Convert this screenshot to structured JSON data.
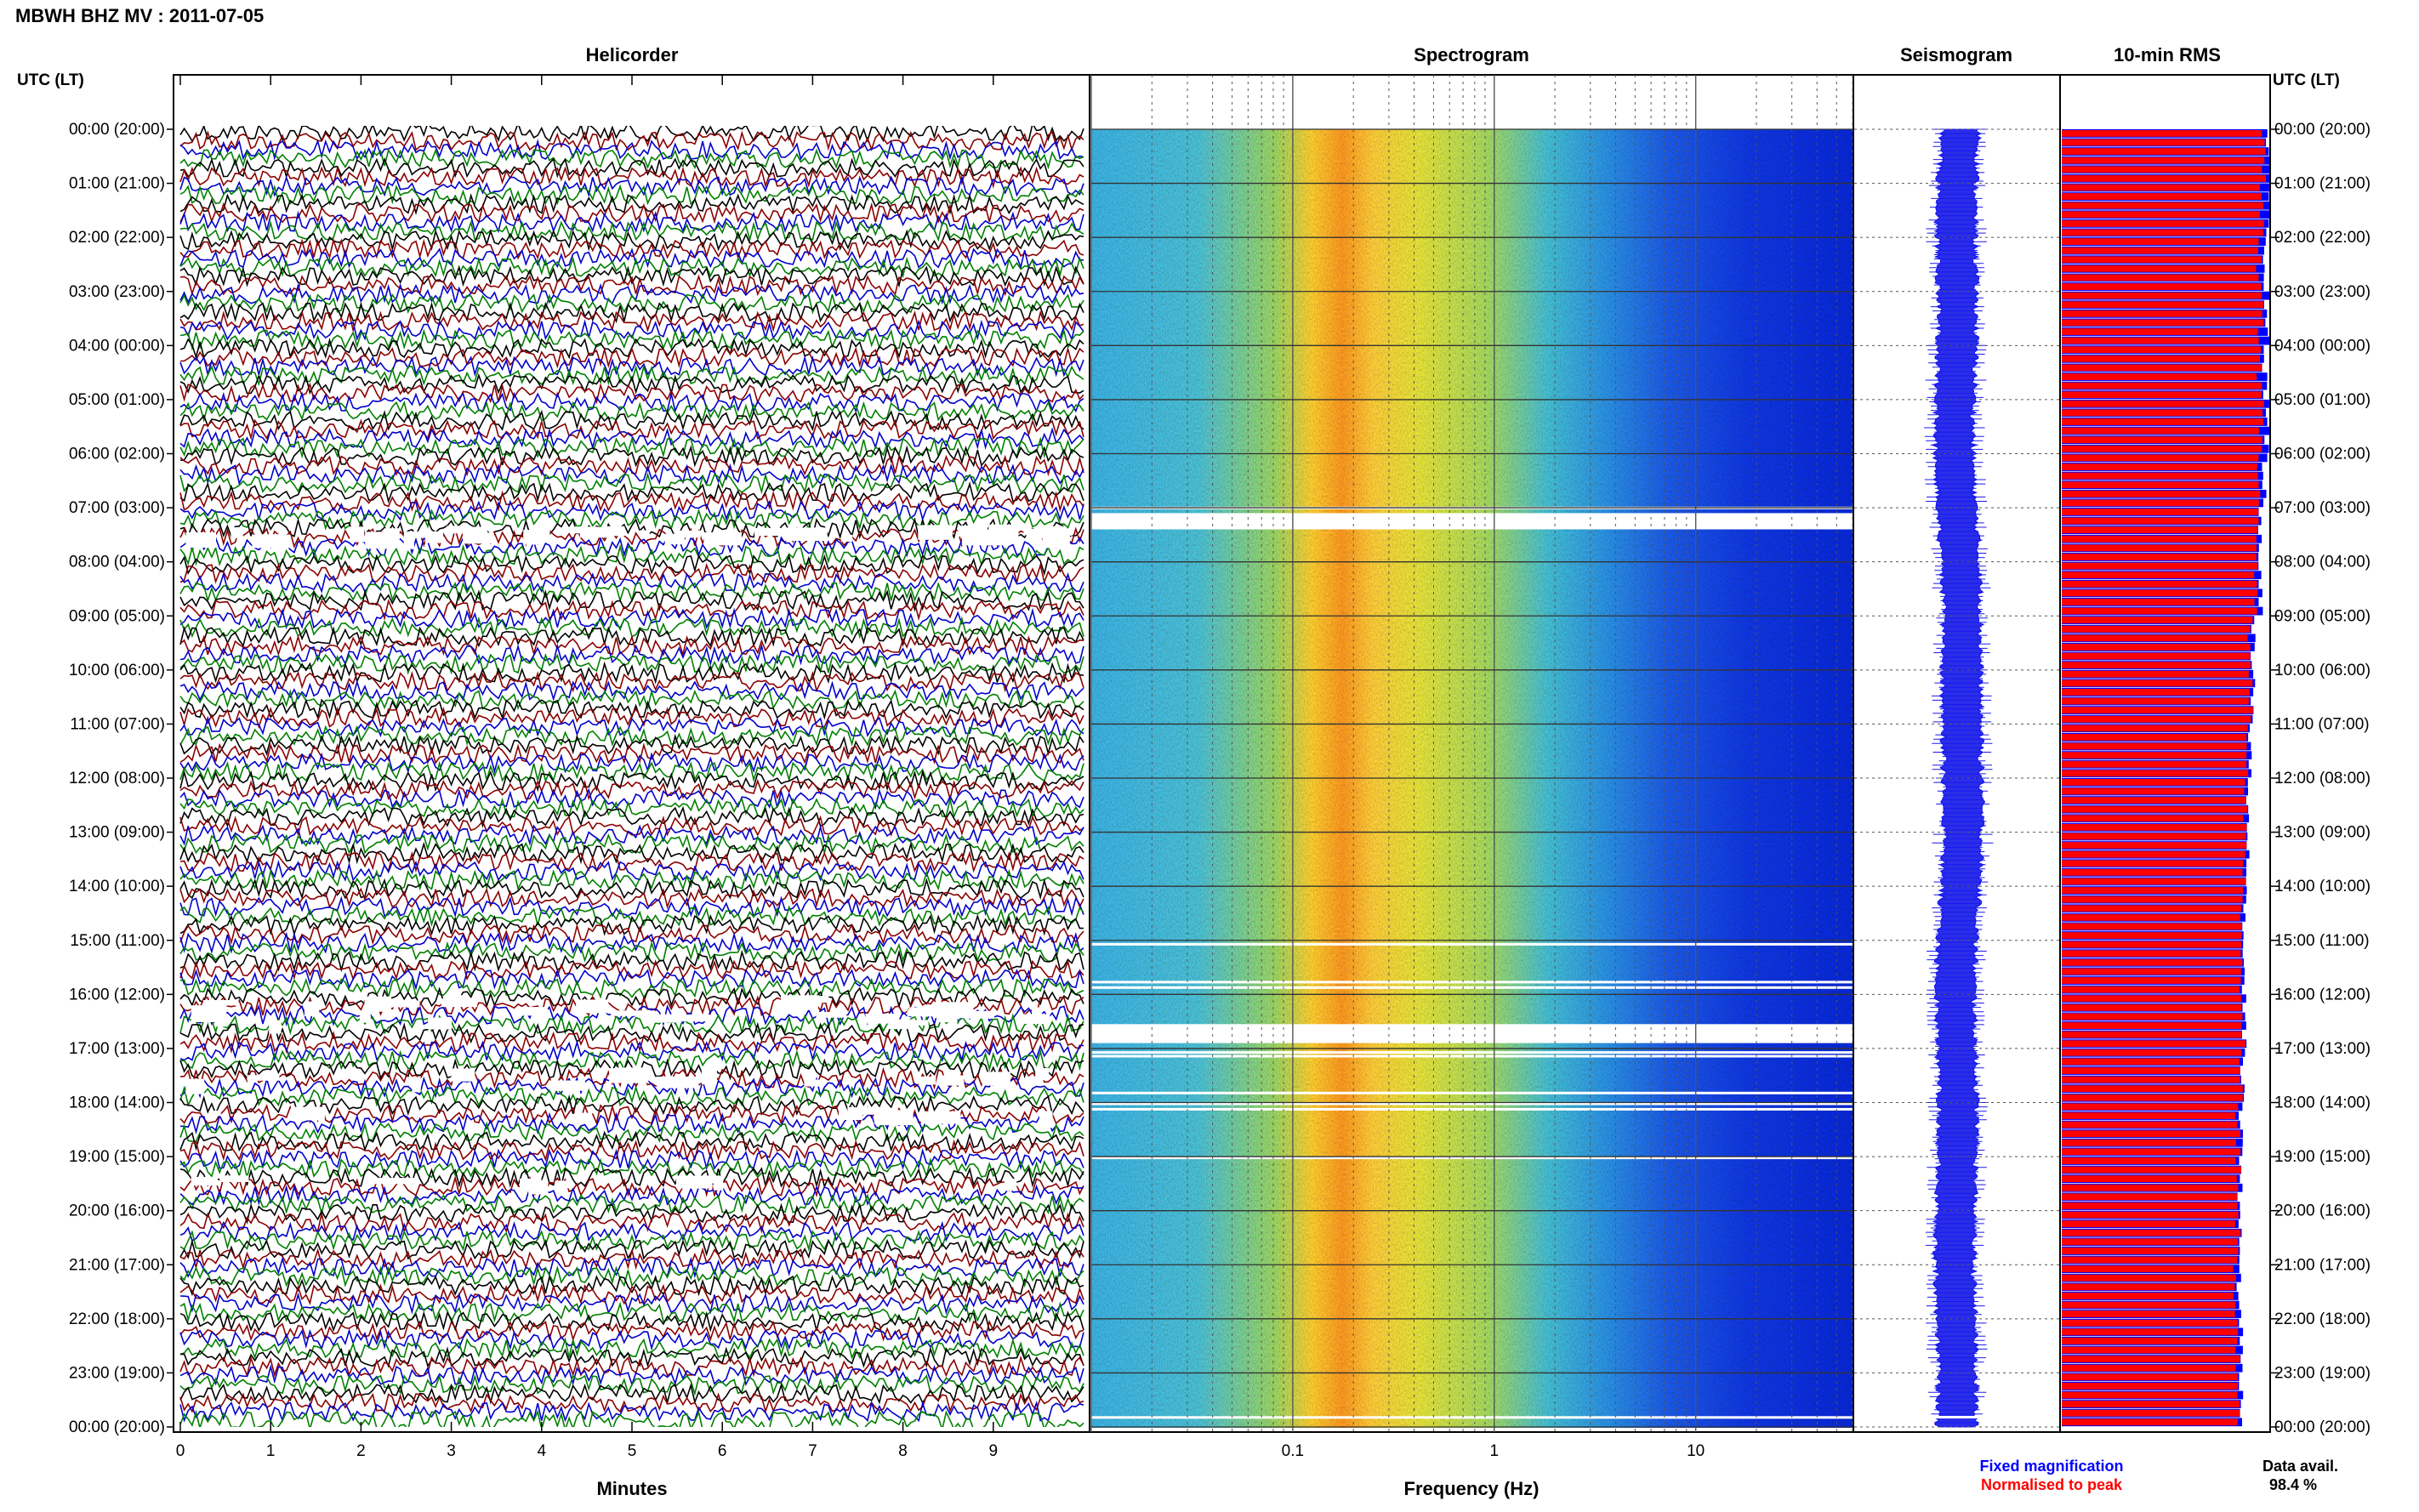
{
  "header": {
    "title": "MBWH BHZ MV : 2011-07-05"
  },
  "panels": {
    "helicorder": "Helicorder",
    "spectrogram": "Spectrogram",
    "seismogram": "Seismogram",
    "rms": "10-min RMS"
  },
  "axes": {
    "left_header": "UTC (LT)",
    "right_header": "UTC (LT)",
    "minutes_label": "Minutes",
    "frequency_label": "Frequency (Hz)"
  },
  "legend": {
    "fixed": "Fixed magnification",
    "normalised": "Normalised to peak",
    "fixed_color": "#0000ff",
    "normalised_color": "#ff0000"
  },
  "availability": {
    "label": "Data avail.",
    "value": "98.4 %"
  },
  "chart_data": {
    "type": "heatmap",
    "time_ticks": [
      "00:00 (20:00)",
      "01:00 (21:00)",
      "02:00 (22:00)",
      "03:00 (23:00)",
      "04:00 (00:00)",
      "05:00 (01:00)",
      "06:00 (02:00)",
      "07:00 (03:00)",
      "08:00 (04:00)",
      "09:00 (05:00)",
      "10:00 (06:00)",
      "11:00 (07:00)",
      "12:00 (08:00)",
      "13:00 (09:00)",
      "14:00 (10:00)",
      "15:00 (11:00)",
      "16:00 (12:00)",
      "17:00 (13:00)",
      "18:00 (14:00)",
      "19:00 (15:00)",
      "20:00 (16:00)",
      "21:00 (17:00)",
      "22:00 (18:00)",
      "23:00 (19:00)",
      "00:00 (20:00)"
    ],
    "minutes_ticks": [
      "0",
      "1",
      "2",
      "3",
      "4",
      "5",
      "6",
      "7",
      "8",
      "9"
    ],
    "minutes_range": [
      0,
      10
    ],
    "freq_ticks": [
      "0.1",
      "1",
      "10"
    ],
    "freq_range": [
      0.01,
      60
    ],
    "freq_log_scale": true,
    "trace_colors": [
      "#000000",
      "#8b0000",
      "#0000cc",
      "#008000"
    ],
    "spectrogram_gaps_hours": [
      [
        7.1,
        7.4
      ],
      [
        16.55,
        16.9
      ]
    ],
    "rms_hourly": [
      0.97,
      0.96,
      0.95,
      0.96,
      0.95,
      0.96,
      0.95,
      0.94,
      0.93,
      0.92,
      0.92,
      0.9,
      0.89,
      0.88,
      0.87,
      0.87,
      0.88,
      0.87,
      0.85,
      0.85,
      0.86,
      0.85,
      0.86,
      0.86
    ],
    "rms_normalised_hourly": [
      0.99,
      0.99,
      0.98,
      0.99,
      0.98,
      0.99,
      0.98,
      0.95,
      0.96,
      0.91,
      0.91,
      0.9,
      0.89,
      0.9,
      0.88,
      0.87,
      0.88,
      0.87,
      0.86,
      0.86,
      0.85,
      0.84,
      0.85,
      0.85
    ]
  }
}
